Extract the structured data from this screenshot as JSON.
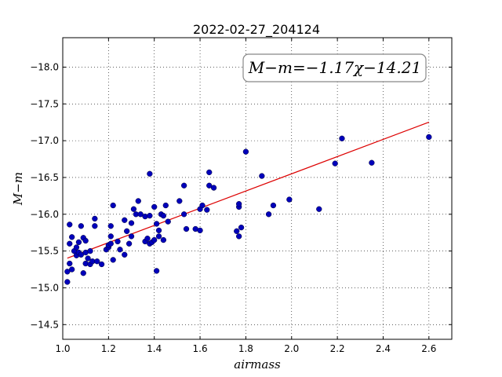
{
  "chart_data": {
    "type": "scatter",
    "title": "2022-02-27_204124",
    "xlabel": "airmass",
    "ylabel": "M−m",
    "xlim": [
      1.0,
      2.7
    ],
    "ylim": [
      -18.4,
      -14.3
    ],
    "y_inverted": true,
    "grid": true,
    "xticks": [
      "1.0",
      "1.2",
      "1.4",
      "1.6",
      "1.8",
      "2.0",
      "2.2",
      "2.4",
      "2.6"
    ],
    "yticks": [
      "−14.5",
      "−15.0",
      "−15.5",
      "−16.0",
      "−16.5",
      "−17.0",
      "−17.5",
      "−18.0"
    ],
    "annotation": "M−m=−1.17χ−14.21",
    "fit": {
      "slope": -1.17,
      "intercept": -14.21,
      "x_range": [
        1.02,
        2.6
      ],
      "color": "#dd0000"
    },
    "point_color": "#0000bb",
    "points": [
      [
        1.02,
        -15.08
      ],
      [
        1.02,
        -15.22
      ],
      [
        1.03,
        -15.33
      ],
      [
        1.04,
        -15.25
      ],
      [
        1.03,
        -15.6
      ],
      [
        1.03,
        -15.86
      ],
      [
        1.04,
        -15.69
      ],
      [
        1.05,
        -15.5
      ],
      [
        1.06,
        -15.44
      ],
      [
        1.06,
        -15.55
      ],
      [
        1.07,
        -15.62
      ],
      [
        1.07,
        -15.48
      ],
      [
        1.08,
        -15.45
      ],
      [
        1.08,
        -15.84
      ],
      [
        1.09,
        -15.2
      ],
      [
        1.09,
        -15.68
      ],
      [
        1.1,
        -15.48
      ],
      [
        1.1,
        -15.33
      ],
      [
        1.1,
        -15.64
      ],
      [
        1.11,
        -15.4
      ],
      [
        1.12,
        -15.32
      ],
      [
        1.12,
        -15.5
      ],
      [
        1.13,
        -15.36
      ],
      [
        1.14,
        -15.84
      ],
      [
        1.14,
        -15.94
      ],
      [
        1.15,
        -15.36
      ],
      [
        1.17,
        -15.32
      ],
      [
        1.19,
        -15.52
      ],
      [
        1.2,
        -15.55
      ],
      [
        1.2,
        -15.58
      ],
      [
        1.21,
        -15.6
      ],
      [
        1.21,
        -15.7
      ],
      [
        1.22,
        -15.38
      ],
      [
        1.21,
        -15.84
      ],
      [
        1.22,
        -16.12
      ],
      [
        1.24,
        -15.63
      ],
      [
        1.25,
        -15.52
      ],
      [
        1.27,
        -15.45
      ],
      [
        1.27,
        -15.92
      ],
      [
        1.28,
        -15.77
      ],
      [
        1.29,
        -15.6
      ],
      [
        1.3,
        -15.7
      ],
      [
        1.3,
        -15.88
      ],
      [
        1.31,
        -16.07
      ],
      [
        1.32,
        -16.0
      ],
      [
        1.33,
        -16.18
      ],
      [
        1.34,
        -16.0
      ],
      [
        1.36,
        -15.63
      ],
      [
        1.36,
        -15.97
      ],
      [
        1.37,
        -15.67
      ],
      [
        1.38,
        -15.6
      ],
      [
        1.38,
        -15.98
      ],
      [
        1.38,
        -16.55
      ],
      [
        1.39,
        -15.62
      ],
      [
        1.4,
        -15.65
      ],
      [
        1.4,
        -16.1
      ],
      [
        1.41,
        -15.23
      ],
      [
        1.41,
        -15.87
      ],
      [
        1.42,
        -15.7
      ],
      [
        1.42,
        -15.78
      ],
      [
        1.43,
        -16.0
      ],
      [
        1.44,
        -15.98
      ],
      [
        1.44,
        -15.65
      ],
      [
        1.45,
        -16.12
      ],
      [
        1.46,
        -15.9
      ],
      [
        1.51,
        -16.18
      ],
      [
        1.53,
        -16.0
      ],
      [
        1.53,
        -16.39
      ],
      [
        1.54,
        -15.8
      ],
      [
        1.58,
        -15.8
      ],
      [
        1.6,
        -15.78
      ],
      [
        1.6,
        -16.07
      ],
      [
        1.61,
        -16.12
      ],
      [
        1.63,
        -16.06
      ],
      [
        1.64,
        -16.39
      ],
      [
        1.64,
        -16.57
      ],
      [
        1.66,
        -16.36
      ],
      [
        1.76,
        -15.77
      ],
      [
        1.77,
        -15.7
      ],
      [
        1.77,
        -16.1
      ],
      [
        1.77,
        -16.14
      ],
      [
        1.78,
        -15.82
      ],
      [
        1.8,
        -16.85
      ],
      [
        1.87,
        -16.52
      ],
      [
        1.9,
        -16.0
      ],
      [
        1.92,
        -16.12
      ],
      [
        1.99,
        -16.2
      ],
      [
        2.12,
        -16.07
      ],
      [
        2.19,
        -16.69
      ],
      [
        2.22,
        -17.03
      ],
      [
        2.35,
        -16.7
      ],
      [
        2.6,
        -17.05
      ]
    ]
  }
}
